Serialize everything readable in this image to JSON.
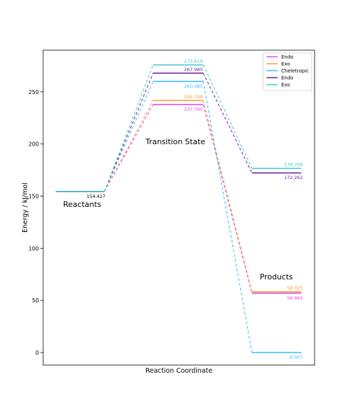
{
  "chart_data": {
    "type": "line",
    "xlabel": "Reaction Coordinate",
    "ylabel": "Energy / kJ/mol",
    "ylim": [
      -12,
      290
    ],
    "yticks": [
      0,
      50,
      100,
      150,
      200,
      250
    ],
    "grid": false,
    "legend_position": "top-right",
    "stages": [
      "Reactants",
      "Transition State",
      "Products"
    ],
    "stage_labels": [
      {
        "text": "Reactants",
        "stage": 0
      },
      {
        "text": "Transition State",
        "stage": 1
      },
      {
        "text": "Products",
        "stage": 2
      }
    ],
    "series": [
      {
        "name": "Endo",
        "color": "#e040e0",
        "values": [
          154.427,
          237.765,
          56.965
        ],
        "labels": [
          "",
          "237.765",
          "56.965"
        ]
      },
      {
        "name": "Exo",
        "color": "#ff9933",
        "values": [
          154.427,
          241.748,
          58.325
        ],
        "labels": [
          "",
          "241.748",
          "58.325"
        ]
      },
      {
        "name": "Cheletropic",
        "color": "#33bbff",
        "values": [
          154.427,
          260.085,
          -0.007
        ],
        "labels": [
          "",
          "260.085",
          "-0.007"
        ]
      },
      {
        "name": "Endo",
        "color": "#6a1b9a",
        "values": [
          154.427,
          267.985,
          172.262
        ],
        "labels": [
          "",
          "267.985",
          "172.262"
        ]
      },
      {
        "name": "Exo",
        "color": "#40c8c8",
        "values": [
          154.427,
          275.819,
          176.706
        ],
        "labels": [
          "154.427",
          "275.819",
          "176.706"
        ]
      }
    ]
  }
}
